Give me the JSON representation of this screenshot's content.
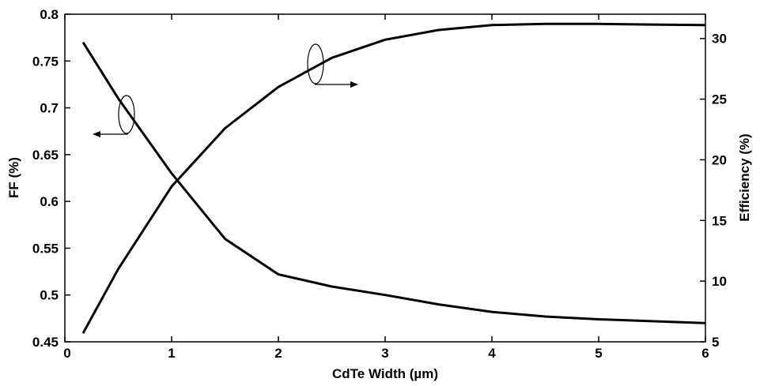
{
  "chart_data": {
    "type": "line",
    "title": "",
    "xlabel": "CdTe Width (µm)",
    "ylabel_left": "FF (%)",
    "ylabel_right": "Efficiency (%)",
    "xlim": [
      0,
      6
    ],
    "ylim_left": [
      0.45,
      0.8
    ],
    "ylim_right": [
      5,
      32
    ],
    "x_ticks": [
      "0",
      "1",
      "2",
      "3",
      "4",
      "5",
      "6"
    ],
    "y_left_ticks": [
      "0.45",
      "0.5",
      "0.55",
      "0.6",
      "0.65",
      "0.7",
      "0.75",
      "0.8"
    ],
    "y_right_ticks": [
      "5",
      "10",
      "15",
      "20",
      "25",
      "30"
    ],
    "grid": false,
    "series": [
      {
        "axis": "left",
        "x": [
          0.17,
          0.5,
          1.0,
          1.5,
          2.0,
          2.5,
          3.0,
          3.5,
          4.0,
          4.5,
          5.0,
          5.5,
          6.0
        ],
        "values": [
          0.77,
          0.71,
          0.63,
          0.56,
          0.522,
          0.509,
          0.5,
          0.49,
          0.482,
          0.477,
          0.474,
          0.472,
          0.47
        ]
      },
      {
        "axis": "right",
        "x": [
          0.17,
          0.5,
          1.0,
          1.5,
          2.0,
          2.5,
          3.0,
          3.5,
          4.0,
          4.5,
          5.0,
          5.5,
          6.0
        ],
        "values": [
          5.7,
          11.0,
          17.8,
          22.6,
          26.0,
          28.4,
          29.9,
          30.7,
          31.1,
          31.2,
          31.2,
          31.15,
          31.1
        ]
      }
    ]
  }
}
